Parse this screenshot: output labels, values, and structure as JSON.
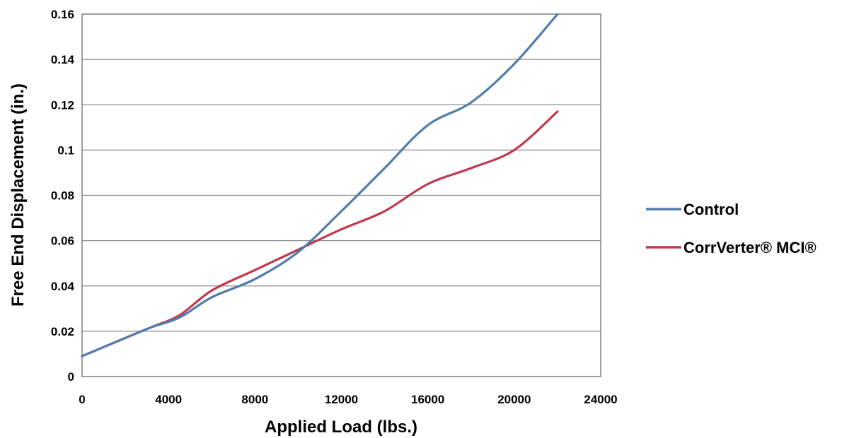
{
  "chart_data": {
    "type": "line",
    "xlabel": "Applied Load (lbs.)",
    "ylabel": "Free End Displacement (in.)",
    "xlim": [
      0,
      24000
    ],
    "ylim": [
      0,
      0.16
    ],
    "x_ticks": [
      "0",
      "4000",
      "8000",
      "12000",
      "16000",
      "20000",
      "24000"
    ],
    "y_ticks": [
      "0",
      "0.02",
      "0.04",
      "0.06",
      "0.08",
      "0.1",
      "0.12",
      "0.14",
      "0.16"
    ],
    "grid": "horizontal",
    "legend_position": "right",
    "series": [
      {
        "name": "Control",
        "color": "#4f7cac",
        "points": [
          [
            0,
            0.009
          ],
          [
            3000,
            0.021
          ],
          [
            4500,
            0.026
          ],
          [
            6000,
            0.035
          ],
          [
            8000,
            0.043
          ],
          [
            10000,
            0.055
          ],
          [
            12000,
            0.073
          ],
          [
            14000,
            0.092
          ],
          [
            16000,
            0.111
          ],
          [
            18000,
            0.121
          ],
          [
            20000,
            0.138
          ],
          [
            22000,
            0.16
          ]
        ]
      },
      {
        "name": "CorrVerter® MCI®",
        "color": "#c0394d",
        "points": [
          [
            0,
            0.009
          ],
          [
            3000,
            0.021
          ],
          [
            4500,
            0.027
          ],
          [
            6000,
            0.038
          ],
          [
            8000,
            0.047
          ],
          [
            10000,
            0.056
          ],
          [
            12000,
            0.065
          ],
          [
            14000,
            0.073
          ],
          [
            16000,
            0.085
          ],
          [
            18000,
            0.092
          ],
          [
            20000,
            0.1
          ],
          [
            22000,
            0.117
          ]
        ]
      }
    ]
  }
}
